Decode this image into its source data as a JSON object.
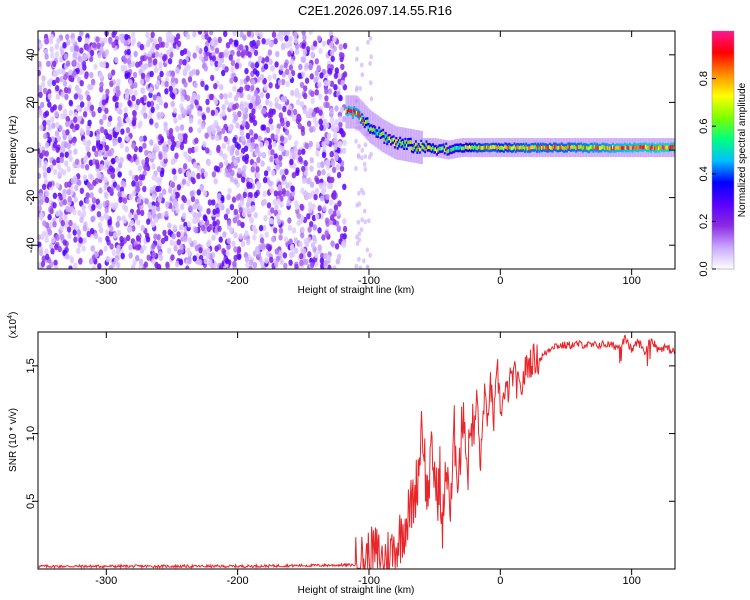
{
  "title": "C2E1.2026.097.14.55.R16",
  "colors": {
    "series": "#e8262a",
    "axis": "#000000",
    "background": "#ffffff"
  },
  "chart_data": [
    {
      "type": "heatmap",
      "title": "",
      "xlabel": "Height of straight line (km)",
      "ylabel": "Frequency (Hz)",
      "xlim": [
        -352,
        133
      ],
      "ylim": [
        -50,
        50
      ],
      "x_ticks": [
        -300,
        -200,
        -100,
        0,
        100
      ],
      "y_ticks": [
        -40,
        -20,
        0,
        20,
        40
      ],
      "colorbar": {
        "label": "Normalized spectral amplitude",
        "range": [
          0,
          1
        ],
        "ticks": [
          "0.0",
          "0.2",
          "0.4",
          "0.6",
          "0.8"
        ],
        "colormap": [
          "#ffffff",
          "#c9a8ff",
          "#8a2be2",
          "#5a00ff",
          "#0000ff",
          "#00bfff",
          "#00ff7f",
          "#7fff00",
          "#ffff00",
          "#ff8c00",
          "#ff0000",
          "#ff1493"
        ]
      },
      "signal_ridge": {
        "x": [
          -118,
          -110,
          -100,
          -90,
          -80,
          -70,
          -60,
          -50,
          -40,
          -30,
          -20,
          -10,
          0,
          20,
          50,
          80,
          100,
          133
        ],
        "frequency": [
          16,
          16,
          10,
          6,
          3,
          2,
          1,
          1,
          0,
          1,
          1,
          1,
          1,
          1,
          1,
          1,
          1,
          1
        ],
        "amplitude": [
          0.85,
          0.8,
          0.6,
          0.55,
          0.6,
          0.65,
          0.7,
          0.6,
          0.55,
          0.6,
          0.7,
          0.75,
          0.7,
          0.75,
          0.75,
          0.8,
          0.85,
          0.9
        ]
      },
      "noise_region": {
        "x_start": -352,
        "x_end": -118,
        "amplitude": [
          0.05,
          0.3
        ]
      }
    },
    {
      "type": "line",
      "title": "",
      "xlabel": "Height of straight line (km)",
      "ylabel": "SNR (10 * v/v)",
      "y_multiplier": "(x10",
      "y_multiplier_exp": "4",
      "y_multiplier_close": ")",
      "xlim": [
        -352,
        133
      ],
      "ylim": [
        0,
        1.75
      ],
      "x_ticks": [
        -300,
        -200,
        -100,
        0,
        100
      ],
      "y_ticks": [
        "0.5",
        "1.0",
        "1.5"
      ],
      "series": [
        {
          "x": [
            -352,
            -300,
            -200,
            -110,
            -100,
            -95,
            -90,
            -80,
            -70,
            -65,
            -62,
            -60,
            -58,
            -56,
            -55,
            -52,
            -50,
            -48,
            -46,
            -45,
            -42,
            -40,
            -38,
            -35,
            -32,
            -30,
            -28,
            -25,
            -22,
            -20,
            -18,
            -15,
            -12,
            -10,
            -8,
            -5,
            -2,
            0,
            5,
            10,
            15,
            20,
            25,
            30,
            35,
            40,
            50,
            60,
            70,
            80,
            90,
            95,
            100,
            105,
            110,
            115,
            120,
            125,
            133
          ],
          "y": [
            0.02,
            0.02,
            0.02,
            0.03,
            0.08,
            0.12,
            0.06,
            0.15,
            0.4,
            0.55,
            0.75,
            1.1,
            0.9,
            0.5,
            0.6,
            0.85,
            0.7,
            0.5,
            0.75,
            0.2,
            0.6,
            0.8,
            0.35,
            1.0,
            0.7,
            0.9,
            1.25,
            0.7,
            1.15,
            0.95,
            1.3,
            0.75,
            1.35,
            1.0,
            1.4,
            1.1,
            1.45,
            1.2,
            1.3,
            1.45,
            1.3,
            1.5,
            1.55,
            1.55,
            1.6,
            1.65,
            1.65,
            1.66,
            1.65,
            1.66,
            1.64,
            1.7,
            1.62,
            1.68,
            1.6,
            1.7,
            1.62,
            1.64,
            1.6
          ]
        }
      ]
    }
  ]
}
